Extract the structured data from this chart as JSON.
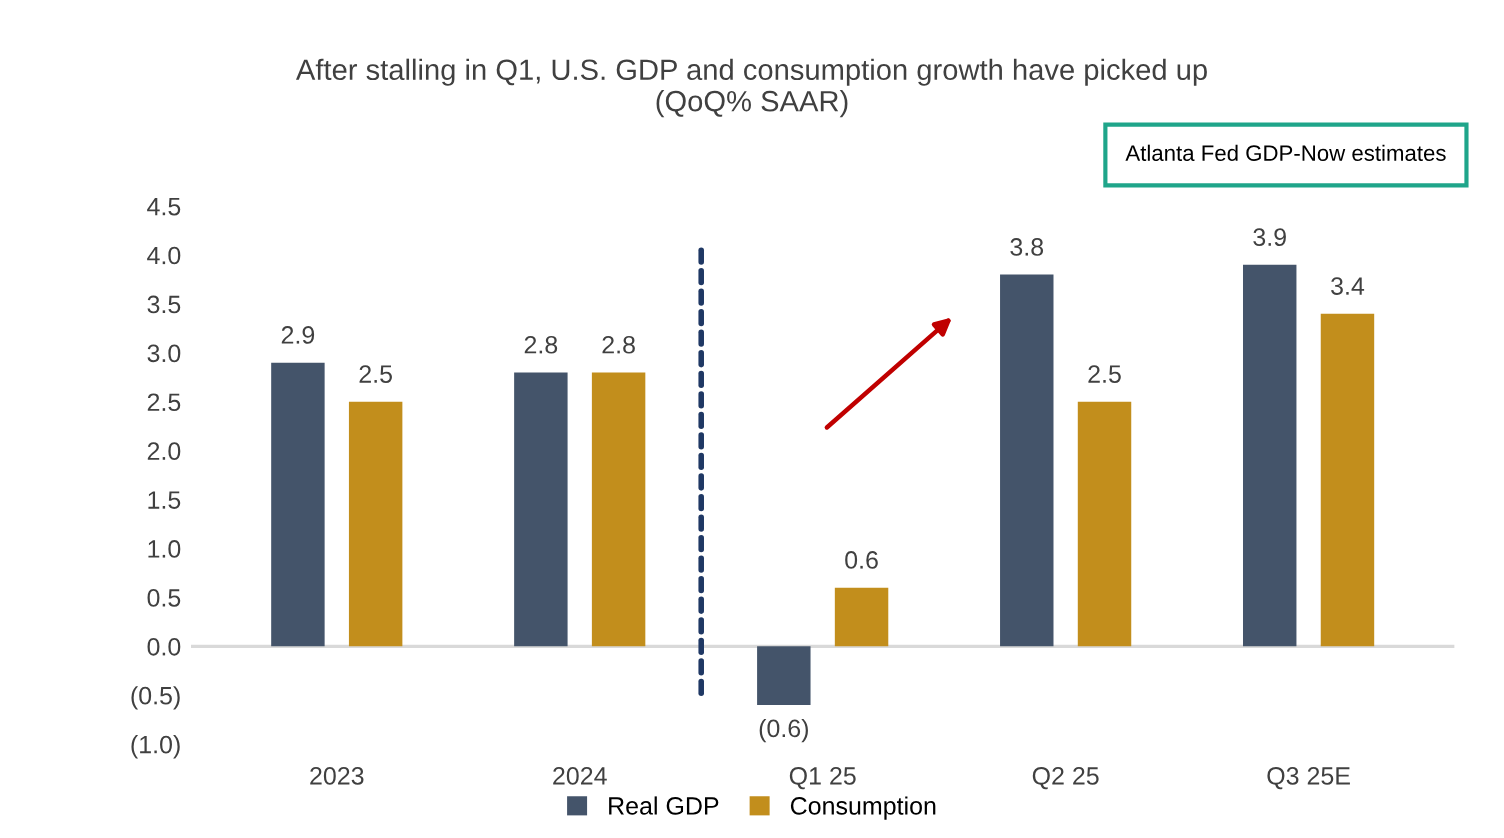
{
  "chart_data": {
    "type": "bar",
    "title": "After stalling in Q1, U.S. GDP and consumption growth have picked up\n(QoQ% SAAR)",
    "categories": [
      "2023",
      "2024",
      "Q1 25",
      "Q2 25",
      "Q3 25E"
    ],
    "series": [
      {
        "name": "Real GDP",
        "color": "#44546a",
        "values": [
          2.9,
          2.8,
          -0.6,
          3.8,
          3.9
        ],
        "value_labels": [
          "2.9",
          "2.8",
          "(0.6)",
          "3.8",
          "3.9"
        ]
      },
      {
        "name": "Consumption",
        "color": "#c28e1c",
        "values": [
          2.5,
          2.8,
          0.6,
          2.5,
          3.4
        ],
        "value_labels": [
          "2.5",
          "2.8",
          "0.6",
          "2.5",
          "3.4"
        ]
      }
    ],
    "ylim": [
      -1.0,
      4.5
    ],
    "yticks": [
      {
        "value": -1.0,
        "label": "(1.0)"
      },
      {
        "value": -0.5,
        "label": "(0.5)"
      },
      {
        "value": 0,
        "label": "0.0"
      },
      {
        "value": 0.5,
        "label": "0.5"
      },
      {
        "value": 1.0,
        "label": "1.0"
      },
      {
        "value": 1.5,
        "label": "1.5"
      },
      {
        "value": 2.0,
        "label": "2.0"
      },
      {
        "value": 2.5,
        "label": "2.5"
      },
      {
        "value": 3.0,
        "label": "3.0"
      },
      {
        "value": 3.5,
        "label": "3.5"
      },
      {
        "value": 4.0,
        "label": "4.0"
      },
      {
        "value": 4.5,
        "label": "4.5"
      }
    ],
    "ref_lines": [
      {
        "axis": "y",
        "value": 0,
        "color": "#d9d9d9",
        "line_style": "solid"
      }
    ],
    "annotations": [
      "Atlanta Fed GDP-Now estimates"
    ],
    "grid": false,
    "legend": "bottom"
  }
}
